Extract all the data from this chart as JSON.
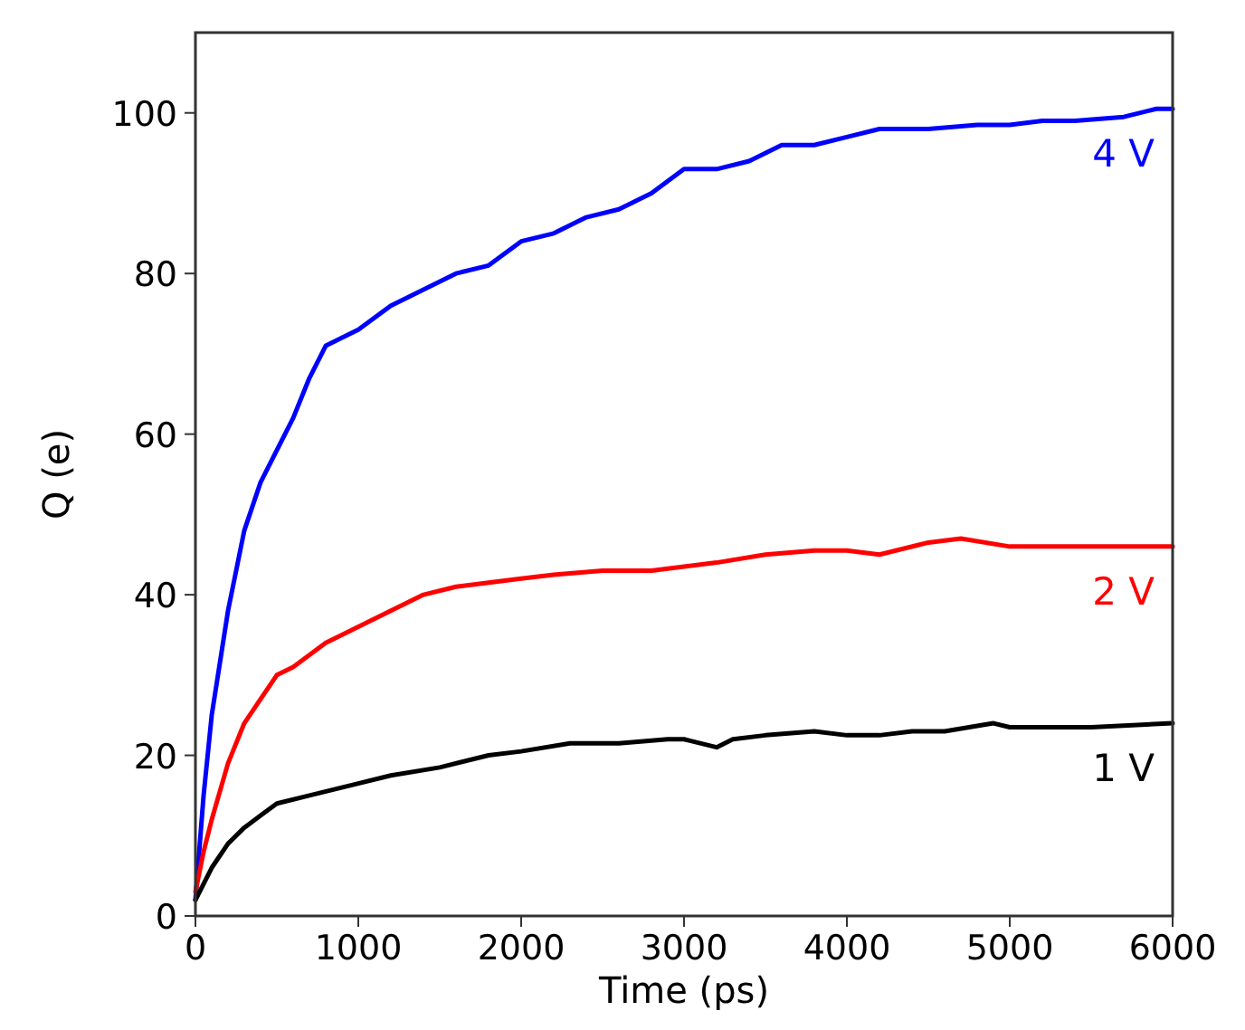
{
  "chart_data": {
    "type": "line",
    "xlabel": "Time (ps)",
    "ylabel": "Q (e)",
    "xlim": [
      0,
      6000
    ],
    "ylim": [
      0,
      110
    ],
    "xticks": [
      0,
      1000,
      2000,
      3000,
      4000,
      5000,
      6000
    ],
    "yticks": [
      0,
      20,
      40,
      60,
      80,
      100
    ],
    "grid": false,
    "legend": false,
    "marker": "none",
    "line_style": "solid",
    "series": [
      {
        "name": "4 V",
        "color": "#0000ff",
        "x": [
          0,
          50,
          100,
          200,
          300,
          400,
          500,
          600,
          700,
          800,
          1000,
          1200,
          1400,
          1600,
          1800,
          2000,
          2200,
          2400,
          2600,
          2800,
          3000,
          3200,
          3400,
          3600,
          3800,
          4000,
          4200,
          4500,
          4800,
          5000,
          5200,
          5400,
          5700,
          5900,
          6000
        ],
        "values": [
          2,
          15,
          25,
          38,
          48,
          54,
          58,
          62,
          67,
          71,
          73,
          76,
          78,
          80,
          81,
          84,
          85,
          87,
          88,
          90,
          93,
          93,
          94,
          96,
          96,
          97,
          98,
          98,
          98.5,
          98.5,
          99,
          99,
          99.5,
          100.5,
          100.5
        ]
      },
      {
        "name": "2 V",
        "color": "#ff0000",
        "x": [
          0,
          50,
          100,
          200,
          300,
          400,
          500,
          600,
          800,
          1000,
          1200,
          1400,
          1600,
          1800,
          2000,
          2200,
          2500,
          2800,
          3000,
          3200,
          3500,
          3800,
          4000,
          4200,
          4500,
          4700,
          5000,
          5200,
          5500,
          6000
        ],
        "values": [
          3,
          8,
          12,
          19,
          24,
          27,
          30,
          31,
          34,
          36,
          38,
          40,
          41,
          41.5,
          42,
          42.5,
          43,
          43,
          43.5,
          44,
          45,
          45.5,
          45.5,
          45,
          46.5,
          47,
          46,
          46,
          46,
          46
        ]
      },
      {
        "name": "1 V",
        "color": "#000000",
        "x": [
          0,
          50,
          100,
          200,
          300,
          400,
          500,
          700,
          1000,
          1200,
          1500,
          1800,
          2000,
          2300,
          2600,
          2900,
          3000,
          3200,
          3300,
          3500,
          3800,
          4000,
          4200,
          4400,
          4600,
          4900,
          5000,
          5500,
          6000
        ],
        "values": [
          2,
          4,
          6,
          9,
          11,
          12.5,
          14,
          15,
          16.5,
          17.5,
          18.5,
          20,
          20.5,
          21.5,
          21.5,
          22,
          22,
          21,
          22,
          22.5,
          23,
          22.5,
          22.5,
          23,
          23,
          24,
          23.5,
          23.5,
          24
        ]
      }
    ]
  }
}
